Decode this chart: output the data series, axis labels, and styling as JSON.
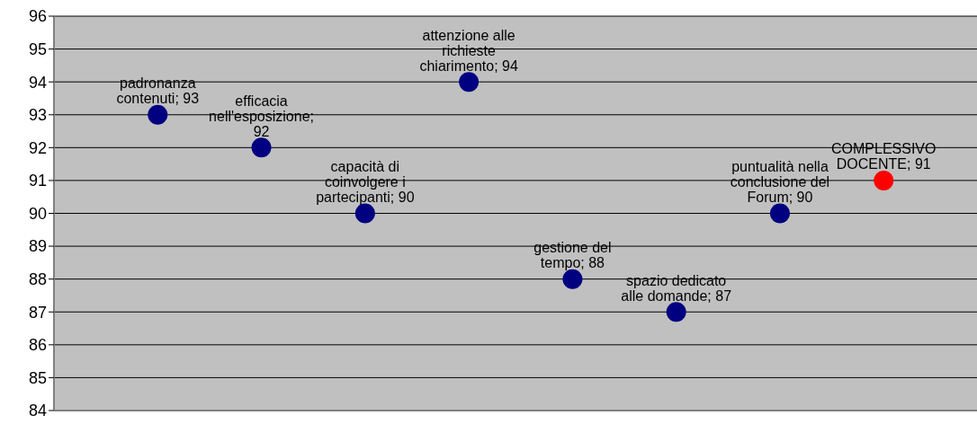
{
  "chart_data": {
    "type": "scatter",
    "categories": [
      "padronanza contenuti; 93",
      "efficacia nell'esposizione; 92",
      "capacità di coinvolgere i partecipanti; 90",
      "attenzione alle richieste chiarimento; 94",
      "gestione del tempo; 88",
      "spazio dedicato alle domande; 87",
      "puntualità nella conclusione del Forum; 90",
      "COMPLESSIVO DOCENTE; 91"
    ],
    "values": [
      93,
      92,
      90,
      94,
      88,
      87,
      90,
      91
    ],
    "colors": [
      "#000080",
      "#000080",
      "#000080",
      "#000080",
      "#000080",
      "#000080",
      "#000080",
      "#ff0000"
    ],
    "ylim": [
      84,
      96
    ],
    "yticks": [
      84,
      85,
      86,
      87,
      88,
      89,
      90,
      91,
      92,
      93,
      94,
      95,
      96
    ],
    "grid": "y",
    "tick_labels": "y",
    "marker": "circle"
  }
}
